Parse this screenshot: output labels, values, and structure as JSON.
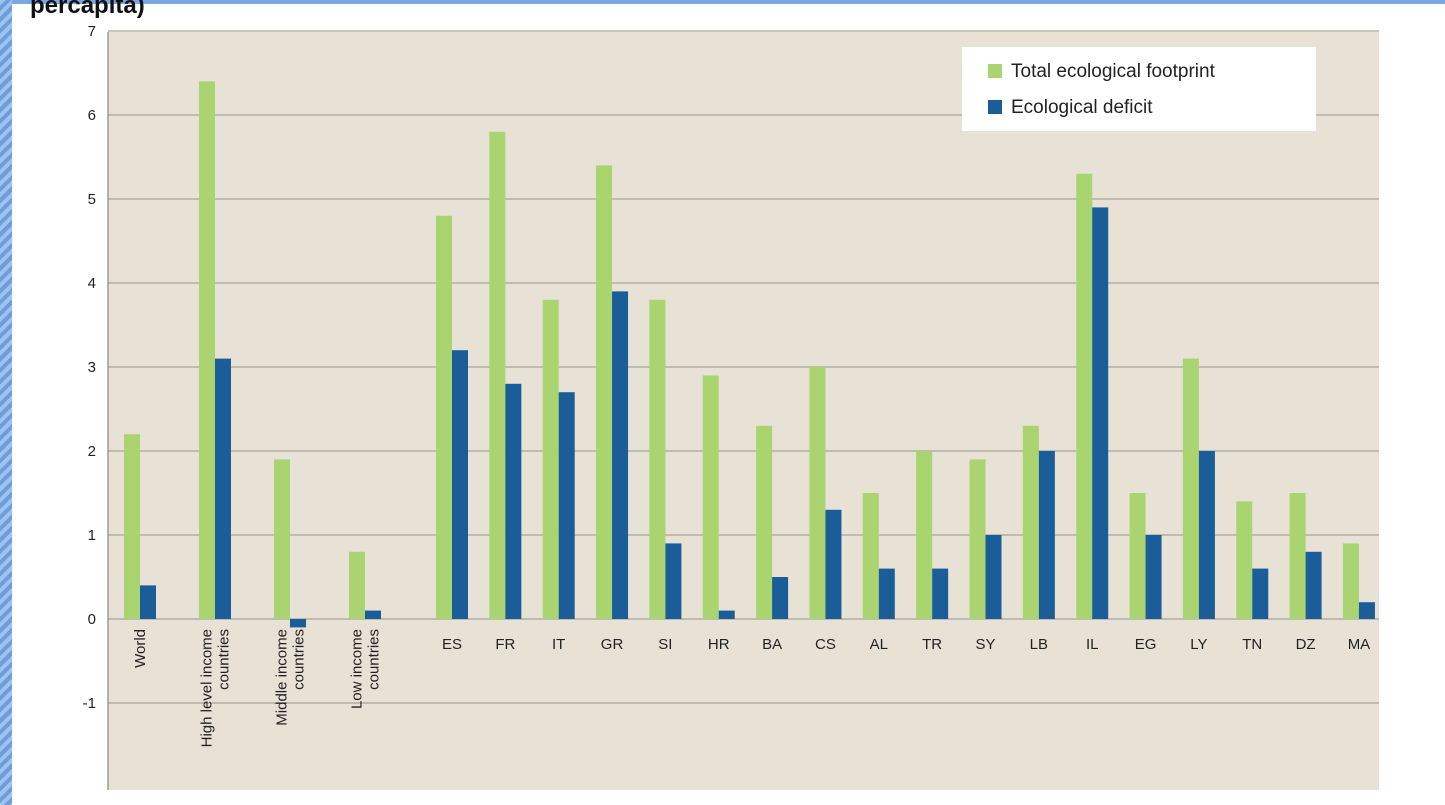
{
  "title_fragment": "percapita)",
  "chart_data": {
    "type": "bar",
    "categories": [
      "World",
      "High level income countries",
      "Middle income countries",
      "Low income countries",
      "ES",
      "FR",
      "IT",
      "GR",
      "SI",
      "HR",
      "BA",
      "CS",
      "AL",
      "TR",
      "SY",
      "LB",
      "IL",
      "EG",
      "LY",
      "TN",
      "DZ",
      "MA"
    ],
    "category_lines": [
      [
        "World"
      ],
      [
        "High level income",
        "countries"
      ],
      [
        "Middle income",
        "countries"
      ],
      [
        "Low income",
        "countries"
      ],
      [
        "ES"
      ],
      [
        "FR"
      ],
      [
        "IT"
      ],
      [
        "GR"
      ],
      [
        "SI"
      ],
      [
        "HR"
      ],
      [
        "BA"
      ],
      [
        "CS"
      ],
      [
        "AL"
      ],
      [
        "TR"
      ],
      [
        "SY"
      ],
      [
        "LB"
      ],
      [
        "IL"
      ],
      [
        "EG"
      ],
      [
        "LY"
      ],
      [
        "TN"
      ],
      [
        "DZ"
      ],
      [
        "MA"
      ]
    ],
    "series": [
      {
        "name": "Total ecological footprint",
        "color": "#a9d46f",
        "values": [
          2.2,
          6.4,
          1.9,
          0.8,
          4.8,
          5.8,
          3.8,
          5.4,
          3.8,
          2.9,
          2.3,
          3.0,
          1.5,
          2.0,
          1.9,
          2.3,
          5.3,
          1.5,
          3.1,
          1.4,
          1.5,
          0.9
        ]
      },
      {
        "name": "Ecological deficit",
        "color": "#1a5d99",
        "values": [
          0.4,
          3.1,
          -0.1,
          0.1,
          3.2,
          2.8,
          2.7,
          3.9,
          0.9,
          0.1,
          0.5,
          1.3,
          0.6,
          0.6,
          1.0,
          2.0,
          4.9,
          1.0,
          2.0,
          0.6,
          0.8,
          0.2
        ]
      }
    ],
    "yticks": [
      7,
      6,
      5,
      4,
      3,
      2,
      1,
      0,
      -1
    ],
    "ylim": [
      -2,
      7
    ],
    "grid": true,
    "legend_position": "top-right",
    "plot_background": "#e8e2d6"
  }
}
